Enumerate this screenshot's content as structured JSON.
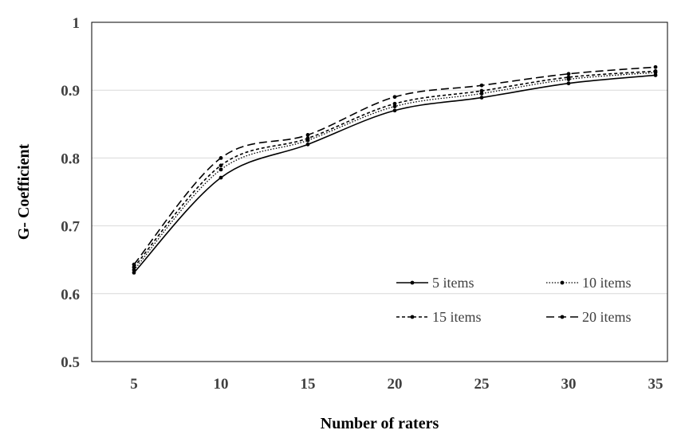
{
  "chart_data": {
    "type": "line",
    "title": "",
    "xlabel": "Number of raters",
    "ylabel": "G- Coefficient",
    "x": [
      5,
      10,
      15,
      20,
      25,
      30,
      35
    ],
    "ylim": [
      0.5,
      1
    ],
    "yticks": [
      "0.5",
      "0.6",
      "0.7",
      "0.8",
      "0.9",
      "1"
    ],
    "xticks": [
      "5",
      "10",
      "15",
      "20",
      "25",
      "30",
      "35"
    ],
    "grid": "horizontal",
    "legend_position": "bottom-right inside plot",
    "series": [
      {
        "name": "5 items",
        "style": "solid",
        "color": "#000000",
        "values": [
          0.631,
          0.771,
          0.82,
          0.87,
          0.889,
          0.91,
          0.922
        ]
      },
      {
        "name": "10 items",
        "style": "dotted",
        "color": "#000000",
        "values": [
          0.635,
          0.783,
          0.826,
          0.876,
          0.895,
          0.916,
          0.926
        ]
      },
      {
        "name": "15 items",
        "style": "dashed",
        "color": "#000000",
        "values": [
          0.639,
          0.789,
          0.829,
          0.88,
          0.899,
          0.919,
          0.928
        ]
      },
      {
        "name": "20 items",
        "style": "longdash",
        "color": "#000000",
        "values": [
          0.643,
          0.8,
          0.834,
          0.89,
          0.907,
          0.924,
          0.934
        ]
      }
    ]
  }
}
